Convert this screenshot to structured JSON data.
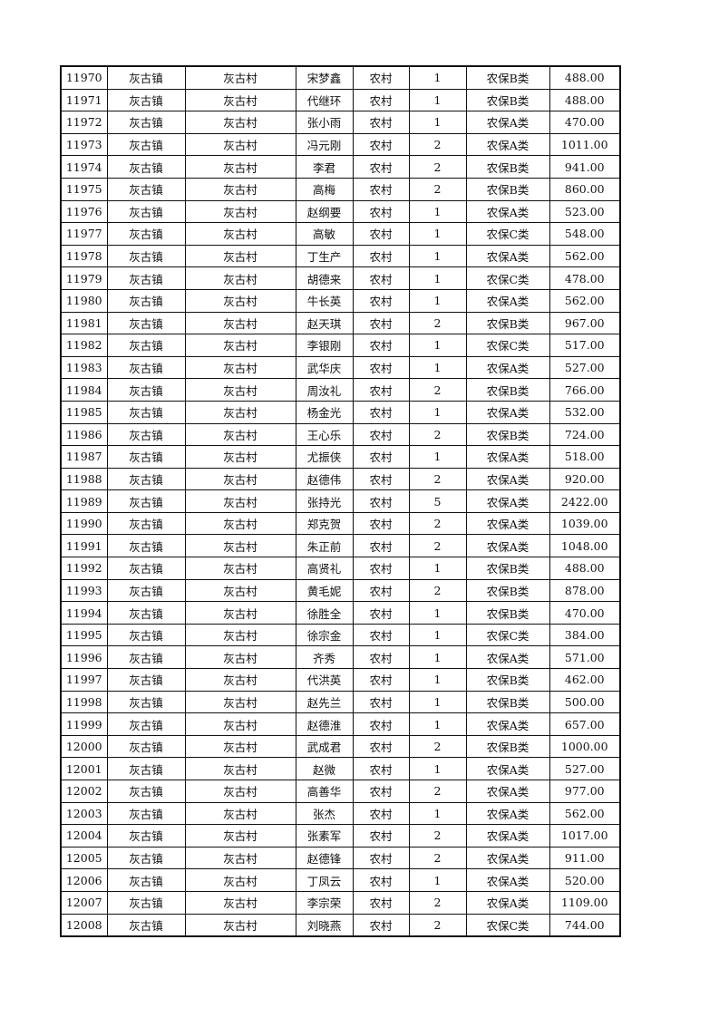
{
  "table": {
    "rows": [
      [
        "11970",
        "灰古镇",
        "灰古村",
        "宋梦鑫",
        "农村",
        "1",
        "农保B类",
        "488.00"
      ],
      [
        "11971",
        "灰古镇",
        "灰古村",
        "代继环",
        "农村",
        "1",
        "农保B类",
        "488.00"
      ],
      [
        "11972",
        "灰古镇",
        "灰古村",
        "张小雨",
        "农村",
        "1",
        "农保A类",
        "470.00"
      ],
      [
        "11973",
        "灰古镇",
        "灰古村",
        "冯元刚",
        "农村",
        "2",
        "农保A类",
        "1011.00"
      ],
      [
        "11974",
        "灰古镇",
        "灰古村",
        "李君",
        "农村",
        "2",
        "农保B类",
        "941.00"
      ],
      [
        "11975",
        "灰古镇",
        "灰古村",
        "高梅",
        "农村",
        "2",
        "农保B类",
        "860.00"
      ],
      [
        "11976",
        "灰古镇",
        "灰古村",
        "赵纲要",
        "农村",
        "1",
        "农保A类",
        "523.00"
      ],
      [
        "11977",
        "灰古镇",
        "灰古村",
        "高敏",
        "农村",
        "1",
        "农保C类",
        "548.00"
      ],
      [
        "11978",
        "灰古镇",
        "灰古村",
        "丁生产",
        "农村",
        "1",
        "农保A类",
        "562.00"
      ],
      [
        "11979",
        "灰古镇",
        "灰古村",
        "胡德来",
        "农村",
        "1",
        "农保C类",
        "478.00"
      ],
      [
        "11980",
        "灰古镇",
        "灰古村",
        "牛长英",
        "农村",
        "1",
        "农保A类",
        "562.00"
      ],
      [
        "11981",
        "灰古镇",
        "灰古村",
        "赵天琪",
        "农村",
        "2",
        "农保B类",
        "967.00"
      ],
      [
        "11982",
        "灰古镇",
        "灰古村",
        "李银刚",
        "农村",
        "1",
        "农保C类",
        "517.00"
      ],
      [
        "11983",
        "灰古镇",
        "灰古村",
        "武华庆",
        "农村",
        "1",
        "农保A类",
        "527.00"
      ],
      [
        "11984",
        "灰古镇",
        "灰古村",
        "周汝礼",
        "农村",
        "2",
        "农保B类",
        "766.00"
      ],
      [
        "11985",
        "灰古镇",
        "灰古村",
        "杨金光",
        "农村",
        "1",
        "农保A类",
        "532.00"
      ],
      [
        "11986",
        "灰古镇",
        "灰古村",
        "王心乐",
        "农村",
        "2",
        "农保B类",
        "724.00"
      ],
      [
        "11987",
        "灰古镇",
        "灰古村",
        "尤振侠",
        "农村",
        "1",
        "农保A类",
        "518.00"
      ],
      [
        "11988",
        "灰古镇",
        "灰古村",
        "赵德伟",
        "农村",
        "2",
        "农保A类",
        "920.00"
      ],
      [
        "11989",
        "灰古镇",
        "灰古村",
        "张持光",
        "农村",
        "5",
        "农保A类",
        "2422.00"
      ],
      [
        "11990",
        "灰古镇",
        "灰古村",
        "郑克贺",
        "农村",
        "2",
        "农保A类",
        "1039.00"
      ],
      [
        "11991",
        "灰古镇",
        "灰古村",
        "朱正前",
        "农村",
        "2",
        "农保A类",
        "1048.00"
      ],
      [
        "11992",
        "灰古镇",
        "灰古村",
        "高贤礼",
        "农村",
        "1",
        "农保B类",
        "488.00"
      ],
      [
        "11993",
        "灰古镇",
        "灰古村",
        "黄毛妮",
        "农村",
        "2",
        "农保B类",
        "878.00"
      ],
      [
        "11994",
        "灰古镇",
        "灰古村",
        "徐胜全",
        "农村",
        "1",
        "农保B类",
        "470.00"
      ],
      [
        "11995",
        "灰古镇",
        "灰古村",
        "徐宗金",
        "农村",
        "1",
        "农保C类",
        "384.00"
      ],
      [
        "11996",
        "灰古镇",
        "灰古村",
        "齐秀",
        "农村",
        "1",
        "农保A类",
        "571.00"
      ],
      [
        "11997",
        "灰古镇",
        "灰古村",
        "代洪英",
        "农村",
        "1",
        "农保B类",
        "462.00"
      ],
      [
        "11998",
        "灰古镇",
        "灰古村",
        "赵先兰",
        "农村",
        "1",
        "农保B类",
        "500.00"
      ],
      [
        "11999",
        "灰古镇",
        "灰古村",
        "赵德淮",
        "农村",
        "1",
        "农保A类",
        "657.00"
      ],
      [
        "12000",
        "灰古镇",
        "灰古村",
        "武成君",
        "农村",
        "2",
        "农保B类",
        "1000.00"
      ],
      [
        "12001",
        "灰古镇",
        "灰古村",
        "赵微",
        "农村",
        "1",
        "农保A类",
        "527.00"
      ],
      [
        "12002",
        "灰古镇",
        "灰古村",
        "高善华",
        "农村",
        "2",
        "农保A类",
        "977.00"
      ],
      [
        "12003",
        "灰古镇",
        "灰古村",
        "张杰",
        "农村",
        "1",
        "农保A类",
        "562.00"
      ],
      [
        "12004",
        "灰古镇",
        "灰古村",
        "张素军",
        "农村",
        "2",
        "农保A类",
        "1017.00"
      ],
      [
        "12005",
        "灰古镇",
        "灰古村",
        "赵德锋",
        "农村",
        "2",
        "农保A类",
        "911.00"
      ],
      [
        "12006",
        "灰古镇",
        "灰古村",
        "丁凤云",
        "农村",
        "1",
        "农保A类",
        "520.00"
      ],
      [
        "12007",
        "灰古镇",
        "灰古村",
        "李宗荣",
        "农村",
        "2",
        "农保A类",
        "1109.00"
      ],
      [
        "12008",
        "灰古镇",
        "灰古村",
        "刘晓燕",
        "农村",
        "2",
        "农保C类",
        "744.00"
      ]
    ]
  }
}
